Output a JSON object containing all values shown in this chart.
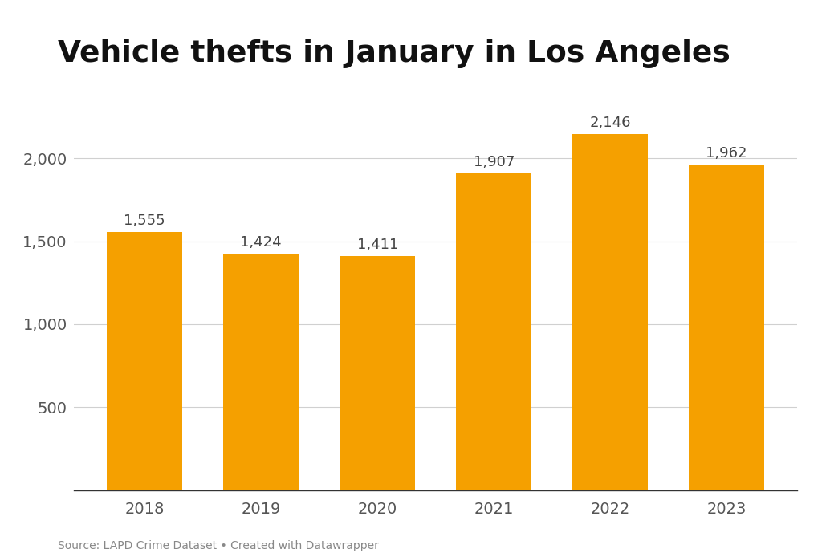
{
  "title": "Vehicle thefts in January in Los Angeles",
  "categories": [
    "2018",
    "2019",
    "2020",
    "2021",
    "2022",
    "2023"
  ],
  "values": [
    1555,
    1424,
    1411,
    1907,
    2146,
    1962
  ],
  "bar_color": "#F5A000",
  "background_color": "#ffffff",
  "ylim": [
    0,
    2350
  ],
  "yticks": [
    500,
    1000,
    1500,
    2000
  ],
  "title_fontsize": 27,
  "tick_fontsize": 14,
  "label_fontsize": 13,
  "source_text": "Source: LAPD Crime Dataset • Created with Datawrapper",
  "grid_color": "#d0d0d0",
  "bar_width": 0.65,
  "tick_color": "#555555"
}
